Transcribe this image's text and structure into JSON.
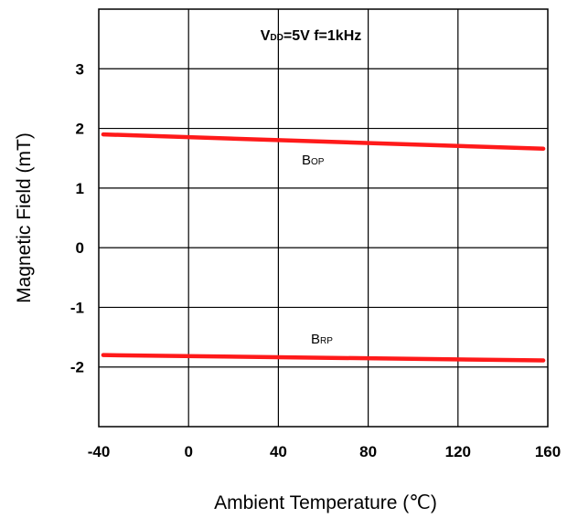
{
  "chart_data": {
    "type": "line",
    "title": "",
    "annotation": {
      "parts": [
        "V",
        "DD",
        "=5V f=1kHz"
      ]
    },
    "xlabel": "Ambient Temperature (℃)",
    "ylabel": "Magnetic Field (mT)",
    "xlim": [
      -40,
      160
    ],
    "ylim": [
      -3,
      4
    ],
    "x_ticks": [
      -40,
      0,
      40,
      80,
      120,
      160
    ],
    "x_tick_labels": [
      "-40",
      "0",
      "40",
      "80",
      "120",
      "160"
    ],
    "y_ticks": [
      3,
      2,
      1,
      0,
      -1,
      -2
    ],
    "y_tick_labels": [
      "3",
      "2",
      "1",
      "0",
      "-1",
      "-2"
    ],
    "grid": true,
    "legend": "none",
    "series": [
      {
        "name": "BOP",
        "label_parts": [
          "B",
          "OP"
        ],
        "color": "#ff1a1a",
        "x": [
          -38,
          158
        ],
        "y": [
          1.9,
          1.66
        ]
      },
      {
        "name": "BRP",
        "label_parts": [
          "B",
          "RP"
        ],
        "color": "#ff1a1a",
        "x": [
          -38,
          158
        ],
        "y": [
          -1.8,
          -1.89
        ]
      }
    ]
  }
}
